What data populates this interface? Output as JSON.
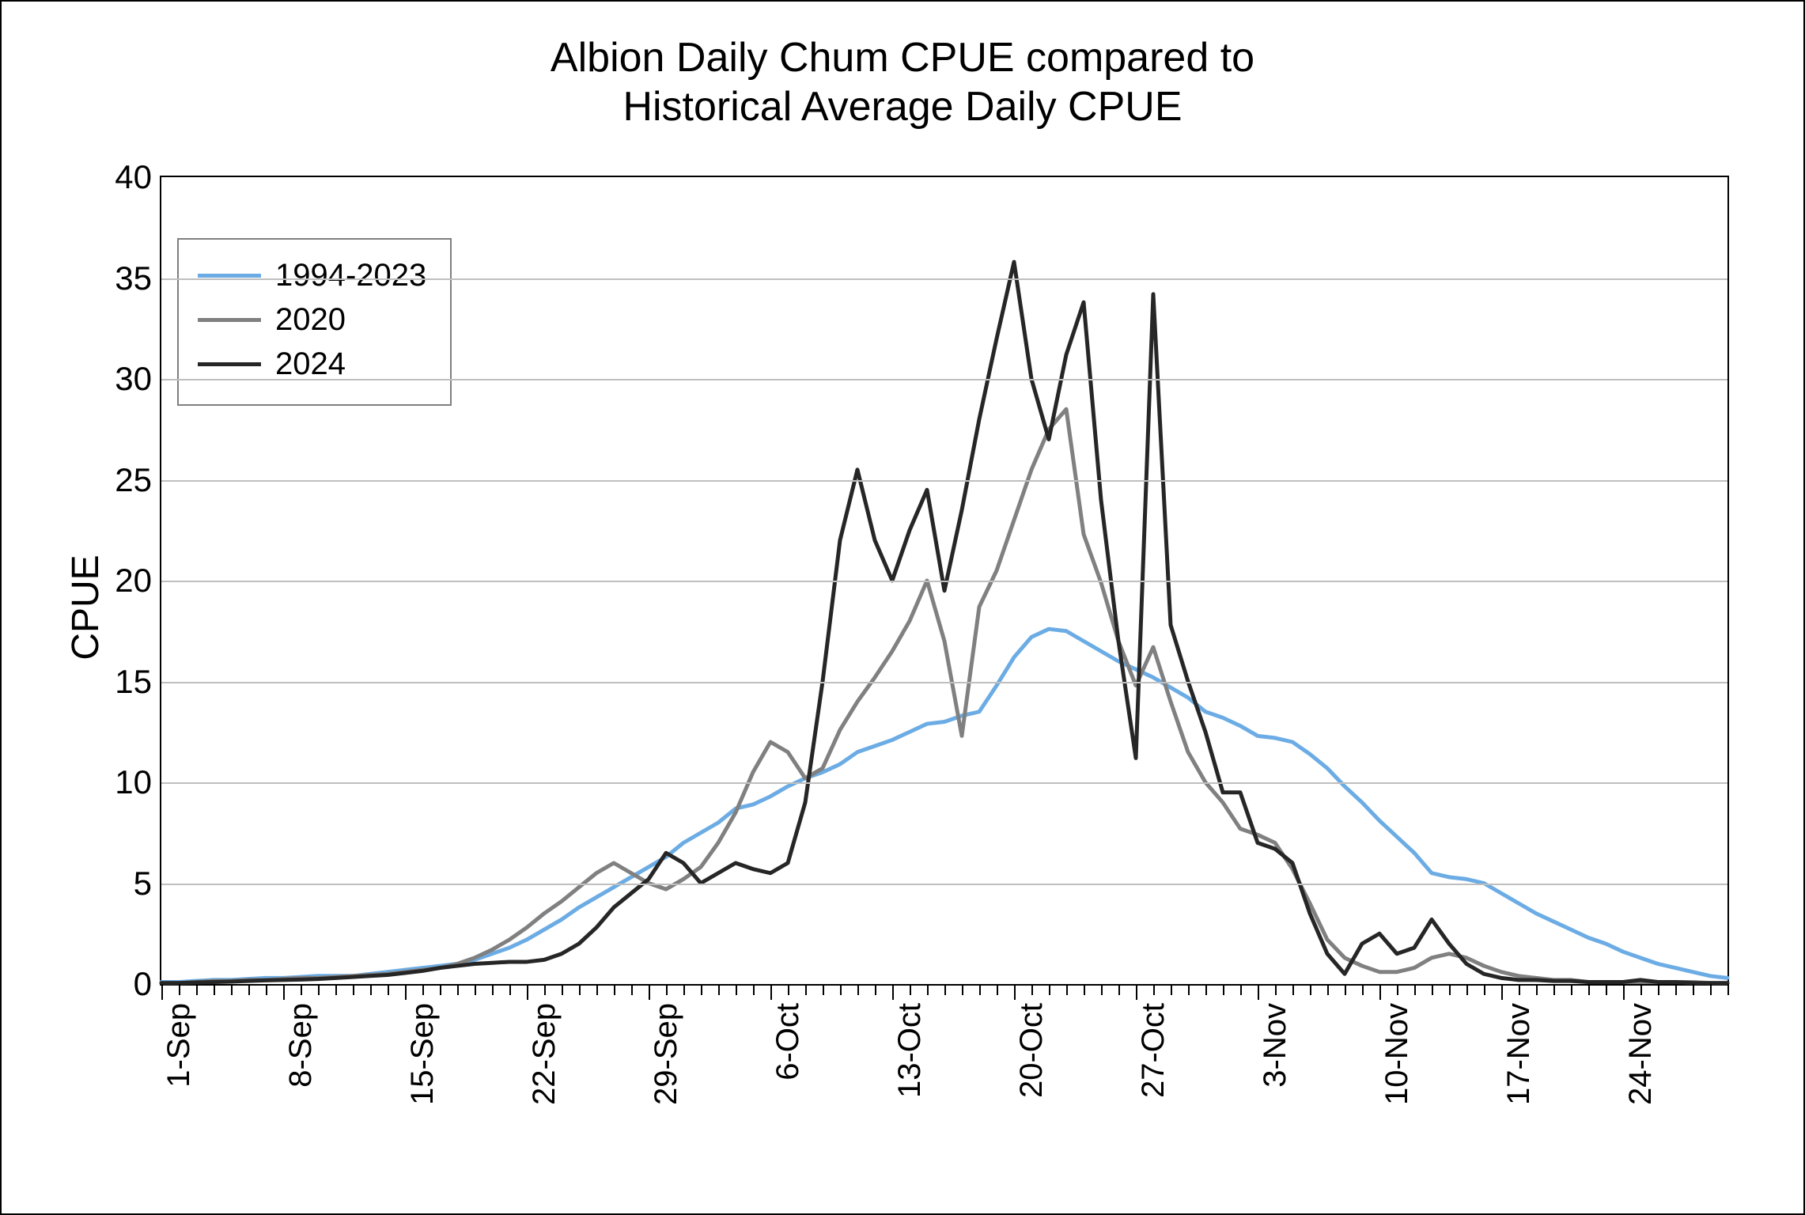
{
  "chart": {
    "type": "line",
    "title_line1": "Albion Daily Chum CPUE compared to",
    "title_line2": "Historical Average Daily CPUE",
    "title_fontsize": 52,
    "ylabel": "CPUE",
    "ylabel_fontsize": 48,
    "x_categories_daily_count": 91,
    "x_major_ticks": [
      {
        "idx": 0,
        "label": "1-Sep"
      },
      {
        "idx": 7,
        "label": "8-Sep"
      },
      {
        "idx": 14,
        "label": "15-Sep"
      },
      {
        "idx": 21,
        "label": "22-Sep"
      },
      {
        "idx": 28,
        "label": "29-Sep"
      },
      {
        "idx": 35,
        "label": "6-Oct"
      },
      {
        "idx": 42,
        "label": "13-Oct"
      },
      {
        "idx": 49,
        "label": "20-Oct"
      },
      {
        "idx": 56,
        "label": "27-Oct"
      },
      {
        "idx": 63,
        "label": "3-Nov"
      },
      {
        "idx": 70,
        "label": "10-Nov"
      },
      {
        "idx": 77,
        "label": "17-Nov"
      },
      {
        "idx": 84,
        "label": "24-Nov"
      }
    ],
    "ylim": [
      0,
      40
    ],
    "ytick_step": 5,
    "yticks": [
      0,
      5,
      10,
      15,
      20,
      25,
      30,
      35,
      40
    ],
    "grid_color": "#bfbfbf",
    "axis_color": "#000000",
    "background_color": "#ffffff",
    "tick_label_fontsize": 42,
    "x_tick_label_fontsize": 40,
    "legend": {
      "position": "top-left-inside",
      "border_color": "#7f7f7f",
      "items": [
        {
          "label": "1994-2023",
          "color": "#6cace4",
          "width": 5
        },
        {
          "label": "2020",
          "color": "#808080",
          "width": 5
        },
        {
          "label": "2024",
          "color": "#262626",
          "width": 5
        }
      ]
    },
    "series": [
      {
        "name": "1994-2023",
        "color": "#6cace4",
        "line_width": 5,
        "y": [
          0.1,
          0.1,
          0.15,
          0.2,
          0.2,
          0.25,
          0.3,
          0.3,
          0.35,
          0.4,
          0.4,
          0.4,
          0.5,
          0.6,
          0.7,
          0.8,
          0.9,
          1.0,
          1.2,
          1.5,
          1.8,
          2.2,
          2.7,
          3.2,
          3.8,
          4.3,
          4.8,
          5.3,
          5.8,
          6.3,
          7.0,
          7.5,
          8.0,
          8.7,
          8.9,
          9.3,
          9.8,
          10.2,
          10.5,
          10.9,
          11.5,
          11.8,
          12.1,
          12.5,
          12.9,
          13.0,
          13.3,
          13.5,
          14.8,
          16.2,
          17.2,
          17.6,
          17.5,
          17.0,
          16.5,
          16.0,
          15.6,
          15.2,
          14.7,
          14.2,
          13.5,
          13.2,
          12.8,
          12.3,
          12.2,
          12.0,
          11.4,
          10.7,
          9.8,
          9.0,
          8.1,
          7.3,
          6.5,
          5.5,
          5.3,
          5.2,
          5.0,
          4.5,
          4.0,
          3.5,
          3.1,
          2.7,
          2.3,
          2.0,
          1.6,
          1.3,
          1.0,
          0.8,
          0.6,
          0.4,
          0.3
        ]
      },
      {
        "name": "2020",
        "color": "#808080",
        "line_width": 5,
        "y": [
          0.05,
          0.05,
          0.1,
          0.15,
          0.15,
          0.2,
          0.2,
          0.25,
          0.3,
          0.3,
          0.35,
          0.4,
          0.45,
          0.5,
          0.6,
          0.7,
          0.8,
          1.0,
          1.3,
          1.7,
          2.2,
          2.8,
          3.5,
          4.1,
          4.8,
          5.5,
          6.0,
          5.5,
          5.0,
          4.7,
          5.2,
          5.8,
          7.0,
          8.5,
          10.5,
          12.0,
          11.5,
          10.2,
          10.7,
          12.6,
          14.0,
          15.2,
          16.5,
          18.0,
          20.0,
          17.0,
          12.3,
          18.7,
          20.5,
          23.0,
          25.5,
          27.5,
          28.5,
          22.3,
          19.9,
          17.0,
          14.8,
          16.7,
          14.0,
          11.5,
          10.0,
          9.0,
          7.7,
          7.4,
          7.0,
          5.7,
          4.0,
          2.2,
          1.3,
          0.9,
          0.6,
          0.6,
          0.8,
          1.3,
          1.5,
          1.3,
          0.9,
          0.6,
          0.4,
          0.3,
          0.2,
          0.2,
          0.1,
          0.1,
          0.1,
          0.1,
          0.1,
          0.1,
          0.1,
          0.05,
          0.05
        ]
      },
      {
        "name": "2024",
        "color": "#262626",
        "line_width": 5,
        "y": [
          0.05,
          0.05,
          0.08,
          0.1,
          0.12,
          0.15,
          0.18,
          0.2,
          0.22,
          0.25,
          0.3,
          0.35,
          0.4,
          0.45,
          0.55,
          0.65,
          0.8,
          0.9,
          1.0,
          1.05,
          1.1,
          1.1,
          1.2,
          1.5,
          2.0,
          2.8,
          3.8,
          4.5,
          5.2,
          6.5,
          6.0,
          5.0,
          5.5,
          6.0,
          5.7,
          5.5,
          6.0,
          9.0,
          15.0,
          22.0,
          25.5,
          22.0,
          20.0,
          22.5,
          24.5,
          19.5,
          23.5,
          28.0,
          32.0,
          35.8,
          30.0,
          27.0,
          31.2,
          33.8,
          24.0,
          17.0,
          11.2,
          34.2,
          17.8,
          15.0,
          12.5,
          9.5,
          9.5,
          7.0,
          6.7,
          6.0,
          3.5,
          1.5,
          0.5,
          2.0,
          2.5,
          1.5,
          1.8,
          3.2,
          2.0,
          1.0,
          0.5,
          0.3,
          0.2,
          0.2,
          0.15,
          0.15,
          0.1,
          0.1,
          0.1,
          0.2,
          0.1,
          0.1,
          0.05,
          0.05,
          0.05
        ]
      }
    ]
  }
}
